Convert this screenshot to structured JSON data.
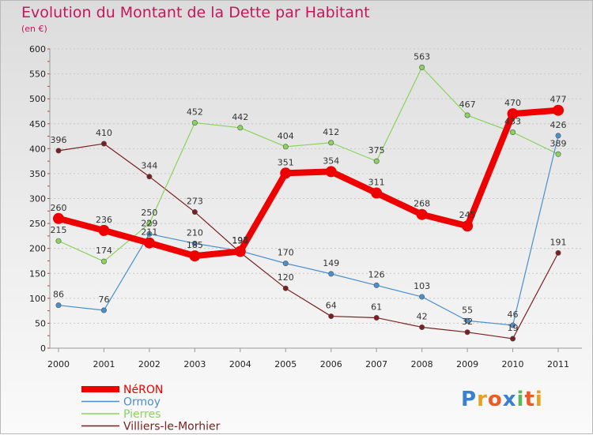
{
  "title": "Evolution du Montant de la Dette par Habitant",
  "subtitle": "(en €)",
  "logo": "Proxiti",
  "chart_data": {
    "type": "line",
    "title": "Evolution du Montant de la Dette par Habitant",
    "ylabel": "(en €)",
    "xlabel": "",
    "ylim": [
      0,
      600
    ],
    "yticks": [
      0,
      50,
      100,
      150,
      200,
      250,
      300,
      350,
      400,
      450,
      500,
      550,
      600
    ],
    "grid": true,
    "legend_position": "bottom-left",
    "x": [
      "2000",
      "2001",
      "2002",
      "2003",
      "2004",
      "2005",
      "2006",
      "2007",
      "2008",
      "2009",
      "2010",
      "2011"
    ],
    "series": [
      {
        "name": "Villiers-le-Morhier",
        "color": "#7a1f1f",
        "width": 1.2,
        "values": [
          396,
          410,
          344,
          273,
          192,
          120,
          64,
          61,
          42,
          32,
          19,
          191
        ],
        "labels": [
          "396",
          "410",
          "344",
          "273",
          "",
          "120",
          "64",
          "61",
          "42",
          "32",
          "19",
          "191"
        ]
      },
      {
        "name": "Pierres",
        "color": "#88d45c",
        "width": 1.2,
        "values": [
          215,
          174,
          250,
          452,
          442,
          404,
          412,
          375,
          563,
          467,
          433,
          389
        ],
        "labels": [
          "215",
          "174",
          "250",
          "452",
          "442",
          "404",
          "412",
          "375",
          "563",
          "467",
          "433",
          "389"
        ]
      },
      {
        "name": "Ormoy",
        "color": "#4a8fcb",
        "width": 1.2,
        "values": [
          86,
          76,
          229,
          210,
          195,
          170,
          149,
          126,
          103,
          55,
          46,
          426
        ],
        "labels": [
          "86",
          "76",
          "229",
          "210",
          "195",
          "170",
          "149",
          "126",
          "103",
          "55",
          "46",
          "426"
        ]
      },
      {
        "name": "NéRON",
        "color": "#ee0000",
        "width": 8,
        "values": [
          260,
          236,
          211,
          185,
          194,
          351,
          354,
          311,
          268,
          245,
          470,
          477
        ],
        "labels": [
          "260",
          "236",
          "211",
          "185",
          "194",
          "351",
          "354",
          "311",
          "268",
          "245",
          "470",
          "477"
        ]
      }
    ],
    "legend": [
      "NéRON",
      "Ormoy",
      "Pierres",
      "Villiers-le-Morhier"
    ]
  }
}
